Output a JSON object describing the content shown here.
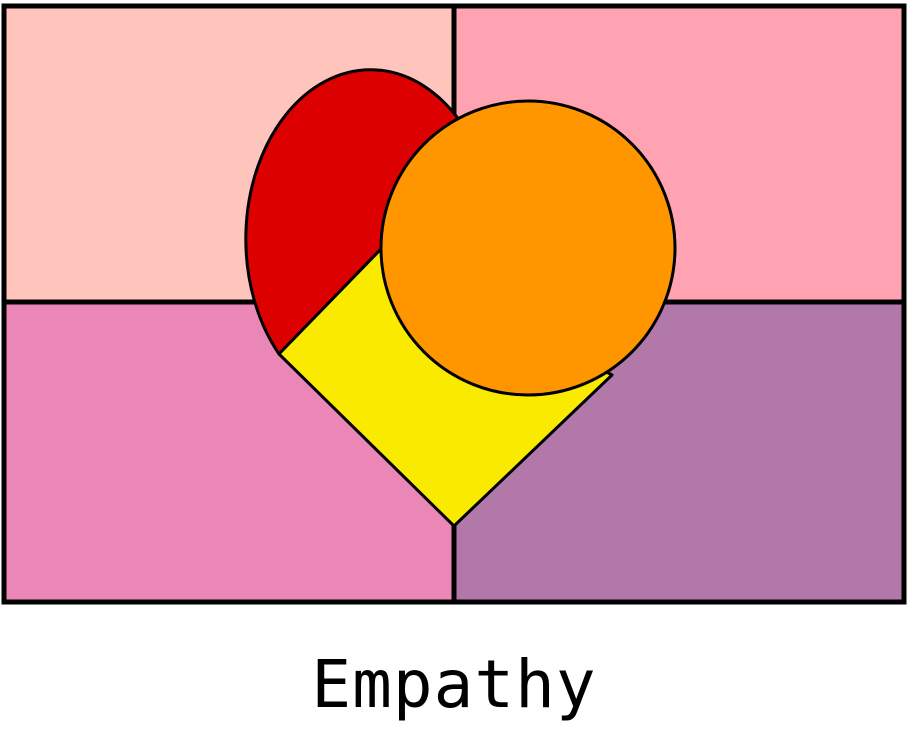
{
  "caption": "Empathy",
  "colors": {
    "quadrant_top_left": "#FFC4BB",
    "quadrant_top_right": "#FFA3B2",
    "quadrant_bottom_left": "#EB87B7",
    "quadrant_bottom_right": "#B378AA",
    "heart_left_lobe": "#DD0000",
    "heart_point": "#FAEA00",
    "heart_right_circle": "#FF9600",
    "outline": "#000000"
  }
}
